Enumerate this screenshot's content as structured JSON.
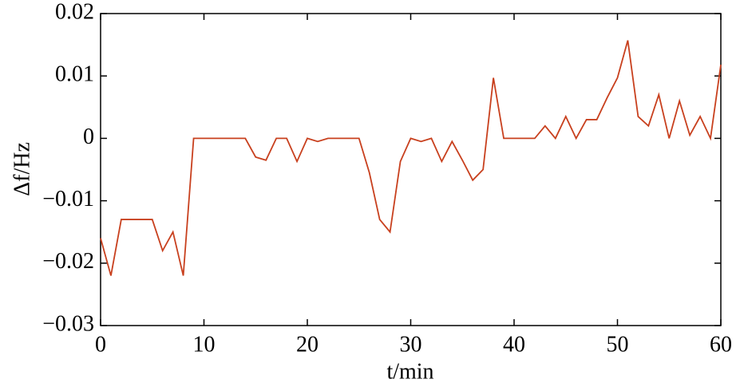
{
  "chart_data": {
    "type": "line",
    "xlabel": "t/min",
    "ylabel": "Δf/Hz",
    "x": [
      0,
      1,
      2,
      3,
      4,
      5,
      6,
      7,
      8,
      9,
      10,
      11,
      12,
      13,
      14,
      15,
      16,
      17,
      18,
      19,
      20,
      21,
      22,
      23,
      24,
      25,
      26,
      27,
      28,
      29,
      30,
      31,
      32,
      33,
      34,
      35,
      36,
      37,
      38,
      39,
      40,
      41,
      42,
      43,
      44,
      45,
      46,
      47,
      48,
      49,
      50,
      51,
      52,
      53,
      54,
      55,
      56,
      57,
      58,
      59,
      60
    ],
    "series": [
      {
        "color": "#c8401e",
        "values": [
          -0.016,
          -0.022,
          -0.013,
          -0.013,
          -0.013,
          -0.013,
          -0.018,
          -0.015,
          -0.022,
          0,
          0,
          0,
          0,
          0,
          0,
          -0.003,
          -0.0035,
          0,
          0,
          -0.0037,
          0,
          -0.0005,
          0,
          0,
          0,
          0,
          -0.0055,
          -0.013,
          -0.015,
          -0.0037,
          0,
          -0.0005,
          0,
          -0.0037,
          -0.0005,
          -0.0035,
          -0.0067,
          -0.005,
          0.0097,
          0,
          0,
          0,
          0,
          0.002,
          0,
          0.0035,
          0,
          0.003,
          0.003,
          0.0065,
          0.0097,
          0.0157,
          0.0035,
          0.002,
          0.007,
          0,
          0.006,
          0.0005,
          0.0035,
          0,
          0.0118
        ]
      }
    ],
    "xlim": [
      0,
      60
    ],
    "xticks": [
      0,
      10,
      20,
      30,
      40,
      50,
      60
    ],
    "ylim": [
      -0.03,
      0.02
    ],
    "yticks": [
      {
        "value": -0.03,
        "label": "−0.03"
      },
      {
        "value": -0.02,
        "label": "−0.02"
      },
      {
        "value": -0.01,
        "label": "−0.01"
      },
      0,
      0.01,
      0.02
    ],
    "grid": false
  }
}
